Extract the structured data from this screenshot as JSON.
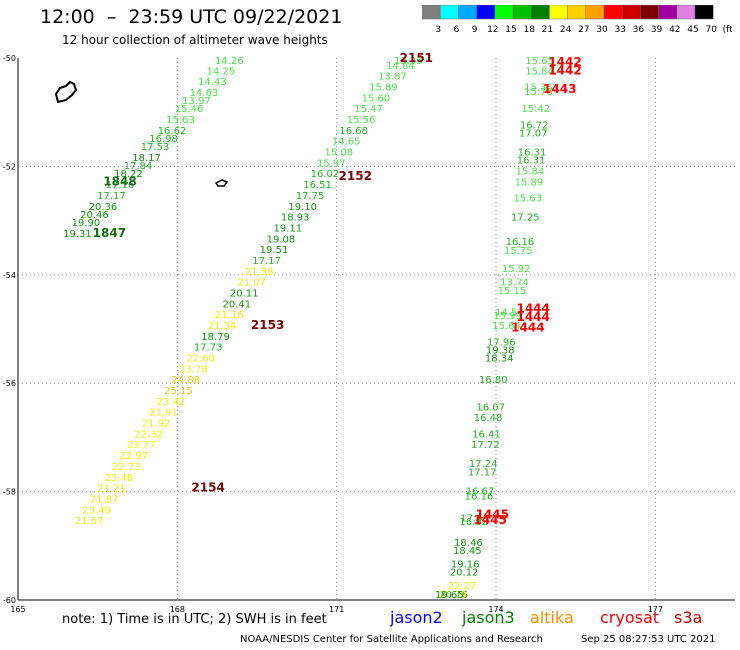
{
  "header": {
    "title": "12:00  –  23:59 UTC 09/22/2021",
    "subtitle": "12 hour collection of altimeter wave heights"
  },
  "colorbar": {
    "labels": [
      "3",
      "6",
      "9",
      "12",
      "15",
      "18",
      "21",
      "24",
      "27",
      "30",
      "33",
      "36",
      "39",
      "42",
      "45",
      "70",
      "(ft)"
    ],
    "colors": [
      "#808080",
      "#00ffff",
      "#00aaff",
      "#0000ff",
      "#00ff00",
      "#00c000",
      "#008000",
      "#ffff00",
      "#ffd000",
      "#ffa000",
      "#ff0000",
      "#d00000",
      "#800000",
      "#a000a0",
      "#e080e0",
      "#000000"
    ]
  },
  "footer": {
    "note": "note:  1) Time is in UTC;  2) SWH is in feet",
    "satellites": [
      {
        "name": "jason2",
        "color": "#0000ff"
      },
      {
        "name": "jason3",
        "color": "#008000"
      },
      {
        "name": "altika",
        "color": "#ff8c00"
      },
      {
        "name": "cryosat",
        "color": "#ff0000"
      },
      {
        "name": "s3a",
        "color": "#c00000"
      }
    ],
    "credit": "NOAA/NESDIS Center for Satellite Applications and Research",
    "timestamp": "Sep 25 08:27:53 UTC 2021"
  },
  "chart_data": {
    "type": "scatter",
    "title": "12:00  –  23:59 UTC 09/22/2021",
    "subtitle": "12 hour collection of altimeter wave heights",
    "xlim": [
      165,
      178.5
    ],
    "ylim": [
      -60,
      -50
    ],
    "x_ticks": [
      165,
      168,
      171,
      174,
      177
    ],
    "y_ticks": [
      -50,
      -52,
      -54,
      -56,
      -58,
      -60
    ],
    "x_tick_labels": [
      "165",
      "168",
      "171",
      "174",
      "177"
    ],
    "y_tick_labels": [
      "-50",
      "-52",
      "-54",
      "-56",
      "-58",
      "-60"
    ],
    "grid": true,
    "units": "ft",
    "colors": {
      "swh_15_18": "#48e048",
      "swh_18_21": "#20a020",
      "swh_21_24": "#107010",
      "swh_24_27": "#f0f000",
      "swh_27_30": "#e8c800",
      "pass_label": "#800000",
      "cryosat_label": "#ff0000"
    },
    "series": [
      {
        "satellite": "jason3",
        "points": [
          {
            "x": 168.98,
            "y": -50.1,
            "v": "14.26"
          },
          {
            "x": 168.82,
            "y": -50.3,
            "v": "14.25"
          },
          {
            "x": 168.66,
            "y": -50.5,
            "v": "14.43"
          },
          {
            "x": 168.5,
            "y": -50.7,
            "v": "14.63"
          },
          {
            "x": 168.36,
            "y": -50.85,
            "v": "13.97"
          },
          {
            "x": 168.22,
            "y": -51.0,
            "v": "15.46"
          },
          {
            "x": 168.06,
            "y": -51.2,
            "v": "15.63"
          },
          {
            "x": 167.9,
            "y": -51.4,
            "v": "16.62"
          },
          {
            "x": 167.74,
            "y": -51.55,
            "v": "16.98"
          },
          {
            "x": 167.58,
            "y": -51.7,
            "v": "17.53"
          },
          {
            "x": 167.42,
            "y": -51.9,
            "v": "18.17"
          },
          {
            "x": 167.26,
            "y": -52.05,
            "v": "17.84"
          },
          {
            "x": 167.08,
            "y": -52.2,
            "v": "18.22"
          },
          {
            "x": 166.92,
            "y": -52.4,
            "v": "17.16"
          },
          {
            "x": 166.76,
            "y": -52.6,
            "v": "17.17"
          },
          {
            "x": 166.6,
            "y": -52.8,
            "v": "20.36"
          },
          {
            "x": 166.44,
            "y": -52.95,
            "v": "20.46"
          },
          {
            "x": 166.28,
            "y": -53.1,
            "v": "19.90"
          },
          {
            "x": 166.12,
            "y": -53.3,
            "v": "19.31"
          }
        ]
      },
      {
        "satellite": "jason3",
        "points": [
          {
            "x": 172.35,
            "y": -50.0,
            "v": "13.35"
          },
          {
            "x": 172.2,
            "y": -50.2,
            "v": "14.84"
          },
          {
            "x": 172.05,
            "y": -50.4,
            "v": "13.87"
          },
          {
            "x": 171.88,
            "y": -50.6,
            "v": "15.89"
          },
          {
            "x": 171.74,
            "y": -50.8,
            "v": "15.60"
          },
          {
            "x": 171.6,
            "y": -51.0,
            "v": "15.47"
          },
          {
            "x": 171.46,
            "y": -51.2,
            "v": "15.56"
          },
          {
            "x": 171.32,
            "y": -51.4,
            "v": "16.68"
          },
          {
            "x": 171.18,
            "y": -51.6,
            "v": "14.65"
          },
          {
            "x": 171.04,
            "y": -51.8,
            "v": "15.08"
          },
          {
            "x": 170.9,
            "y": -52.0,
            "v": "15.97"
          },
          {
            "x": 170.78,
            "y": -52.2,
            "v": "16.02"
          },
          {
            "x": 170.64,
            "y": -52.4,
            "v": "16.51"
          },
          {
            "x": 170.5,
            "y": -52.6,
            "v": "17.75"
          },
          {
            "x": 170.36,
            "y": -52.8,
            "v": "19.10"
          },
          {
            "x": 170.22,
            "y": -53.0,
            "v": "18.93"
          },
          {
            "x": 170.08,
            "y": -53.2,
            "v": "19.11"
          },
          {
            "x": 169.95,
            "y": -53.4,
            "v": "19.08"
          },
          {
            "x": 169.82,
            "y": -53.6,
            "v": "19.51"
          },
          {
            "x": 169.68,
            "y": -53.8,
            "v": "17.17"
          },
          {
            "x": 169.54,
            "y": -54.0,
            "v": "21.58"
          },
          {
            "x": 169.4,
            "y": -54.2,
            "v": "21.07"
          },
          {
            "x": 169.26,
            "y": -54.4,
            "v": "20.11"
          },
          {
            "x": 169.12,
            "y": -54.6,
            "v": "20.41"
          },
          {
            "x": 168.98,
            "y": -54.8,
            "v": "21.16"
          },
          {
            "x": 168.84,
            "y": -55.0,
            "v": "21.34"
          },
          {
            "x": 168.72,
            "y": -55.2,
            "v": "18.79"
          },
          {
            "x": 168.58,
            "y": -55.4,
            "v": "17.73"
          },
          {
            "x": 168.44,
            "y": -55.6,
            "v": "22.60"
          },
          {
            "x": 168.3,
            "y": -55.8,
            "v": "23.78"
          },
          {
            "x": 168.16,
            "y": -56.0,
            "v": "24.88"
          },
          {
            "x": 168.02,
            "y": -56.2,
            "v": "25.15"
          },
          {
            "x": 167.88,
            "y": -56.4,
            "v": "23.42"
          },
          {
            "x": 167.74,
            "y": -56.6,
            "v": "21.91"
          },
          {
            "x": 167.6,
            "y": -56.8,
            "v": "21.92"
          },
          {
            "x": 167.46,
            "y": -57.0,
            "v": "22.32"
          },
          {
            "x": 167.32,
            "y": -57.2,
            "v": "23.77"
          },
          {
            "x": 167.18,
            "y": -57.4,
            "v": "22.97"
          },
          {
            "x": 167.04,
            "y": -57.6,
            "v": "22.73"
          },
          {
            "x": 166.9,
            "y": -57.8,
            "v": "23.48"
          },
          {
            "x": 166.76,
            "y": -58.0,
            "v": "21.21"
          },
          {
            "x": 166.62,
            "y": -58.2,
            "v": "21.87"
          },
          {
            "x": 166.48,
            "y": -58.4,
            "v": "23.49"
          },
          {
            "x": 166.34,
            "y": -58.6,
            "v": "21.67"
          }
        ]
      },
      {
        "satellite": "jason3",
        "points": [
          {
            "x": 174.82,
            "y": -50.1,
            "v": "15.65"
          },
          {
            "x": 174.82,
            "y": -50.3,
            "v": "15.84"
          },
          {
            "x": 174.8,
            "y": -50.6,
            "v": "15.36"
          },
          {
            "x": 174.8,
            "y": -50.68,
            "v": "15.76"
          },
          {
            "x": 174.75,
            "y": -51.0,
            "v": "15.42"
          },
          {
            "x": 174.72,
            "y": -51.3,
            "v": "16.72"
          },
          {
            "x": 174.7,
            "y": -51.45,
            "v": "17.07"
          },
          {
            "x": 174.68,
            "y": -51.8,
            "v": "16.31"
          },
          {
            "x": 174.66,
            "y": -51.95,
            "v": "16.31"
          },
          {
            "x": 174.64,
            "y": -52.15,
            "v": "15.84"
          },
          {
            "x": 174.62,
            "y": -52.35,
            "v": "15.89"
          },
          {
            "x": 174.6,
            "y": -52.65,
            "v": "15.63"
          },
          {
            "x": 174.55,
            "y": -53.0,
            "v": "17.25"
          },
          {
            "x": 174.45,
            "y": -53.45,
            "v": "16.16"
          },
          {
            "x": 174.42,
            "y": -53.62,
            "v": "15.75"
          },
          {
            "x": 174.38,
            "y": -53.95,
            "v": "15.92"
          },
          {
            "x": 174.35,
            "y": -54.2,
            "v": "13.74"
          },
          {
            "x": 174.3,
            "y": -54.35,
            "v": "15.15"
          },
          {
            "x": 174.25,
            "y": -54.75,
            "v": "14.53"
          },
          {
            "x": 174.22,
            "y": -54.82,
            "v": "15.99"
          },
          {
            "x": 174.2,
            "y": -55.0,
            "v": "15.64"
          },
          {
            "x": 174.1,
            "y": -55.3,
            "v": "17.96"
          },
          {
            "x": 174.08,
            "y": -55.45,
            "v": "19.38"
          },
          {
            "x": 174.06,
            "y": -55.6,
            "v": "18.34"
          },
          {
            "x": 173.95,
            "y": -56.0,
            "v": "16.80"
          },
          {
            "x": 173.9,
            "y": -56.5,
            "v": "16.07"
          },
          {
            "x": 173.85,
            "y": -56.7,
            "v": "16.48"
          },
          {
            "x": 173.82,
            "y": -57.0,
            "v": "16.41"
          },
          {
            "x": 173.8,
            "y": -57.2,
            "v": "17.72"
          },
          {
            "x": 173.76,
            "y": -57.55,
            "v": "17.24"
          },
          {
            "x": 173.74,
            "y": -57.7,
            "v": "17.17"
          },
          {
            "x": 173.7,
            "y": -58.05,
            "v": "16.67"
          },
          {
            "x": 173.68,
            "y": -58.15,
            "v": "16.16"
          },
          {
            "x": 173.6,
            "y": -58.55,
            "v": "17.48"
          },
          {
            "x": 173.58,
            "y": -58.62,
            "v": "16.82"
          },
          {
            "x": 173.48,
            "y": -59.0,
            "v": "18.46"
          },
          {
            "x": 173.46,
            "y": -59.15,
            "v": "18.45"
          },
          {
            "x": 173.42,
            "y": -59.4,
            "v": "19.16"
          },
          {
            "x": 173.4,
            "y": -59.55,
            "v": "20.12"
          },
          {
            "x": 173.36,
            "y": -59.8,
            "v": "22.27"
          },
          {
            "x": 173.2,
            "y": -60.25,
            "v": "20.76"
          },
          {
            "x": 173.18,
            "y": -60.5,
            "v": "21.29"
          },
          {
            "x": 173.12,
            "y": -60.85,
            "v": "19.65"
          }
        ]
      }
    ],
    "pass_labels": [
      {
        "x": 172.5,
        "y": -50.0,
        "text": "2151",
        "satellite": "jason3"
      },
      {
        "x": 171.35,
        "y": -52.25,
        "text": "2152",
        "satellite": "jason3"
      },
      {
        "x": 169.7,
        "y": -55.0,
        "text": "2153",
        "satellite": "jason3"
      },
      {
        "x": 168.58,
        "y": -58.0,
        "text": "2154",
        "satellite": "jason3"
      },
      {
        "x": 166.92,
        "y": -52.35,
        "text": "1848",
        "satellite": "jason3"
      },
      {
        "x": 166.72,
        "y": -53.3,
        "text": "1847",
        "satellite": "jason3"
      },
      {
        "x": 175.3,
        "y": -50.15,
        "text": "1442",
        "satellite": "cryosat"
      },
      {
        "x": 175.3,
        "y": -50.3,
        "text": "1442",
        "satellite": "cryosat"
      },
      {
        "x": 175.2,
        "y": -50.65,
        "text": "1443",
        "satellite": "cryosat"
      },
      {
        "x": 174.7,
        "y": -54.7,
        "text": "1444",
        "satellite": "cryosat"
      },
      {
        "x": 174.7,
        "y": -54.85,
        "text": "1444",
        "satellite": "cryosat"
      },
      {
        "x": 174.6,
        "y": -55.05,
        "text": "1444",
        "satellite": "cryosat"
      },
      {
        "x": 173.93,
        "y": -58.5,
        "text": "1445",
        "satellite": "cryosat"
      },
      {
        "x": 173.89,
        "y": -58.6,
        "text": "1445",
        "satellite": "cryosat"
      }
    ]
  }
}
